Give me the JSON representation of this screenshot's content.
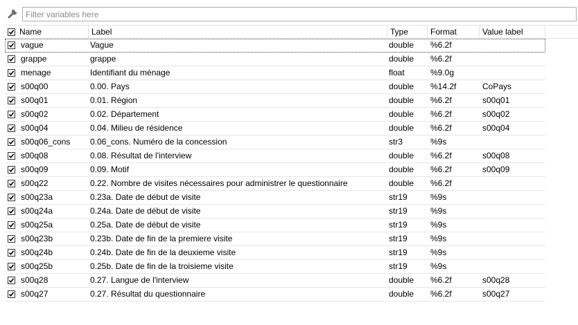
{
  "filter": {
    "placeholder": "Filter variables here",
    "icon": "wrench-icon"
  },
  "columns": {
    "name": "Name",
    "label": "Label",
    "type": "Type",
    "format": "Format",
    "value_label": "Value label"
  },
  "rows": [
    {
      "checked": true,
      "name": "vague",
      "label": "Vague",
      "type": "double",
      "format": "%6.2f",
      "value_label": "",
      "selected": true
    },
    {
      "checked": true,
      "name": "grappe",
      "label": "grappe",
      "type": "double",
      "format": "%6.2f",
      "value_label": ""
    },
    {
      "checked": true,
      "name": "menage",
      "label": "Identifiant du ménage",
      "type": "float",
      "format": "%9.0g",
      "value_label": ""
    },
    {
      "checked": true,
      "name": "s00q00",
      "label": "0.00. Pays",
      "type": "double",
      "format": "%14.2f",
      "value_label": "CoPays"
    },
    {
      "checked": true,
      "name": "s00q01",
      "label": "0.01. Région",
      "type": "double",
      "format": "%6.2f",
      "value_label": "s00q01"
    },
    {
      "checked": true,
      "name": "s00q02",
      "label": "0.02. Département",
      "type": "double",
      "format": "%6.2f",
      "value_label": "s00q02"
    },
    {
      "checked": true,
      "name": "s00q04",
      "label": "0.04. Milieu de résidence",
      "type": "double",
      "format": "%6.2f",
      "value_label": "s00q04"
    },
    {
      "checked": true,
      "name": "s00q06_cons",
      "label": "0.06_cons. Numéro de la concession",
      "type": "str3",
      "format": "%9s",
      "value_label": ""
    },
    {
      "checked": true,
      "name": "s00q08",
      "label": "0.08. Résultat de l'interview",
      "type": "double",
      "format": "%6.2f",
      "value_label": "s00q08"
    },
    {
      "checked": true,
      "name": "s00q09",
      "label": "0.09. Motif",
      "type": "double",
      "format": "%6.2f",
      "value_label": "s00q09"
    },
    {
      "checked": true,
      "name": "s00q22",
      "label": "0.22. Nombre de visites nécessaires pour administrer le questionnaire",
      "type": "double",
      "format": "%6.2f",
      "value_label": ""
    },
    {
      "checked": true,
      "name": "s00q23a",
      "label": "0.23a. Date de début de visite",
      "type": "str19",
      "format": "%9s",
      "value_label": ""
    },
    {
      "checked": true,
      "name": "s00q24a",
      "label": "0.24a. Date de début de visite",
      "type": "str19",
      "format": "%9s",
      "value_label": ""
    },
    {
      "checked": true,
      "name": "s00q25a",
      "label": "0.25a. Date de début de visite",
      "type": "str19",
      "format": "%9s",
      "value_label": ""
    },
    {
      "checked": true,
      "name": "s00q23b",
      "label": "0.23b. Date de fin de la premiere visite",
      "type": "str19",
      "format": "%9s",
      "value_label": ""
    },
    {
      "checked": true,
      "name": "s00q24b",
      "label": "0.24b. Date de fin de la deuxieme visite",
      "type": "str19",
      "format": "%9s",
      "value_label": ""
    },
    {
      "checked": true,
      "name": "s00q25b",
      "label": "0.25b. Date de fin de la troisieme visite",
      "type": "str19",
      "format": "%9s",
      "value_label": ""
    },
    {
      "checked": true,
      "name": "s00q28",
      "label": "0.27. Langue de l'interview",
      "type": "double",
      "format": "%6.2f",
      "value_label": "s00q28"
    },
    {
      "checked": true,
      "name": "s00q27",
      "label": "0.27. Résultat du questionnaire",
      "type": "double",
      "format": "%6.2f",
      "value_label": "s00q27"
    }
  ]
}
